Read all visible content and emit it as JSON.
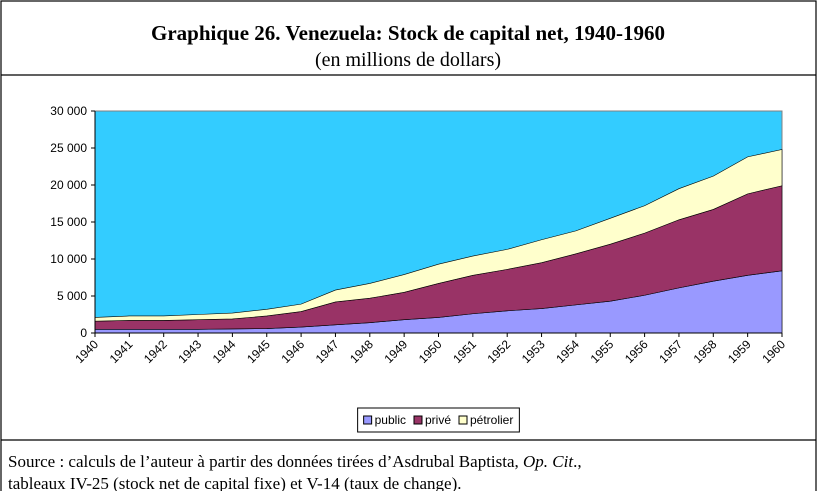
{
  "title": "Graphique 26. Venezuela: Stock de capital net, 1940-1960",
  "subtitle": "(en millions de dollars)",
  "source": {
    "line1": [
      "Source : calculs de l’auteur à partir des données tirées d’Asdrubal Baptista, ",
      "Op. Cit",
      "., "
    ],
    "line2": "tableaux IV-25 (stock net de capital fixe) et V-14 (taux de change)."
  },
  "chart_data": {
    "type": "stacked_area",
    "categories": [
      "1940",
      "1941",
      "1942",
      "1943",
      "1944",
      "1945",
      "1946",
      "1947",
      "1948",
      "1949",
      "1950",
      "1951",
      "1952",
      "1953",
      "1954",
      "1955",
      "1956",
      "1957",
      "1958",
      "1959",
      "1960"
    ],
    "series": [
      {
        "name": "public",
        "color": "#9999ff",
        "values": [
          500,
          500,
          500,
          500,
          550,
          600,
          800,
          1100,
          1400,
          1800,
          2100,
          2600,
          3000,
          3300,
          3800,
          4300,
          5100,
          6100,
          7000,
          7800,
          8400
        ]
      },
      {
        "name": "privé",
        "color": "#993366",
        "values": [
          1100,
          1200,
          1200,
          1300,
          1350,
          1700,
          2100,
          3100,
          3300,
          3700,
          4600,
          5200,
          5600,
          6200,
          6900,
          7700,
          8400,
          9200,
          9700,
          11000,
          11500
        ]
      },
      {
        "name": "pétrolier",
        "color": "#ffffcc",
        "values": [
          500,
          600,
          600,
          700,
          800,
          900,
          1000,
          1600,
          2000,
          2400,
          2600,
          2600,
          2700,
          3100,
          3100,
          3500,
          3700,
          4200,
          4500,
          5000,
          4900
        ]
      }
    ],
    "ylim": [
      0,
      30000
    ],
    "yticks": [
      0,
      {
        "value": 5000,
        "label": "5 000"
      },
      {
        "value": 10000,
        "label": "10 000"
      },
      {
        "value": 15000,
        "label": "15 000"
      },
      {
        "value": 20000,
        "label": "20 000"
      },
      {
        "value": 25000,
        "label": "25 000"
      },
      {
        "value": 30000,
        "label": "30 000"
      }
    ],
    "plot_background": "#33ccff",
    "grid": false,
    "legend": "bottom"
  }
}
